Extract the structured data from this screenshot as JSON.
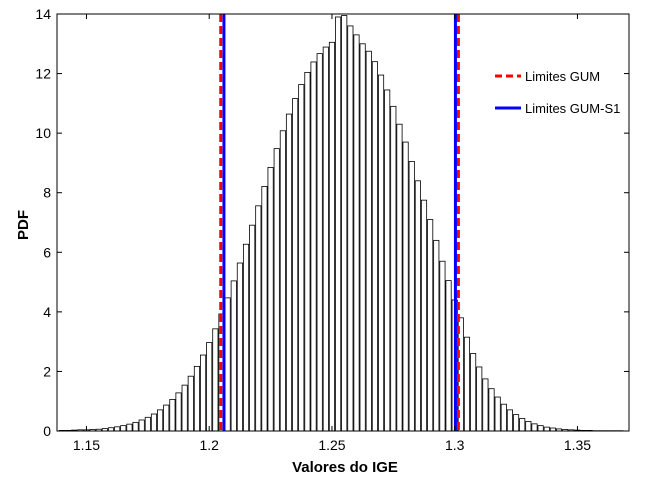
{
  "chart_data": {
    "type": "bar",
    "xlabel": "Valores do IGE",
    "ylabel": "PDF",
    "xlim": [
      1.138,
      1.371
    ],
    "ylim": [
      0,
      14
    ],
    "xticks": [
      1.15,
      1.2,
      1.25,
      1.3,
      1.35
    ],
    "xtick_labels": [
      "1.15",
      "1.2",
      "1.25",
      "1.3",
      "1.35"
    ],
    "yticks": [
      0,
      2,
      4,
      6,
      8,
      10,
      12,
      14
    ],
    "ytick_labels": [
      "0",
      "2",
      "4",
      "6",
      "8",
      "10",
      "12",
      "14"
    ],
    "grid": false,
    "legend_position": "top-right",
    "histogram": {
      "x": [
        1.14,
        1.1425,
        1.145,
        1.1475,
        1.15,
        1.1525,
        1.155,
        1.1575,
        1.16,
        1.1625,
        1.165,
        1.1675,
        1.17,
        1.1725,
        1.175,
        1.1775,
        1.18,
        1.1825,
        1.185,
        1.1875,
        1.19,
        1.1925,
        1.195,
        1.1975,
        1.2,
        1.2025,
        1.205,
        1.2075,
        1.21,
        1.2125,
        1.215,
        1.2175,
        1.22,
        1.2225,
        1.225,
        1.2275,
        1.23,
        1.2325,
        1.235,
        1.2375,
        1.24,
        1.2425,
        1.245,
        1.2475,
        1.25,
        1.2525,
        1.255,
        1.2575,
        1.26,
        1.2625,
        1.265,
        1.2675,
        1.27,
        1.2725,
        1.275,
        1.2775,
        1.28,
        1.2825,
        1.285,
        1.2875,
        1.29,
        1.2925,
        1.295,
        1.2975,
        1.3,
        1.3025,
        1.305,
        1.3075,
        1.31,
        1.3125,
        1.315,
        1.3175,
        1.32,
        1.3225,
        1.325,
        1.3275,
        1.33,
        1.3325,
        1.335,
        1.3375,
        1.34,
        1.3425,
        1.345,
        1.3475,
        1.35,
        1.3525,
        1.355,
        1.3575,
        1.36,
        1.3625,
        1.365,
        1.3675
      ],
      "values": [
        0.02,
        0.02,
        0.03,
        0.04,
        0.04,
        0.05,
        0.06,
        0.08,
        0.11,
        0.14,
        0.18,
        0.23,
        0.29,
        0.37,
        0.46,
        0.57,
        0.71,
        0.87,
        1.06,
        1.28,
        1.54,
        1.84,
        2.17,
        2.55,
        2.97,
        3.43,
        3.93,
        4.47,
        5.04,
        5.64,
        6.27,
        6.91,
        7.56,
        8.21,
        8.85,
        9.48,
        10.08,
        10.64,
        11.16,
        11.63,
        12.04,
        12.39,
        12.67,
        12.89,
        13.05,
        13.9,
        13.95,
        13.6,
        13.3,
        13.0,
        12.75,
        12.4,
        11.95,
        11.45,
        10.9,
        10.3,
        9.7,
        9.05,
        8.4,
        7.75,
        7.1,
        6.4,
        5.7,
        5.05,
        4.4,
        3.8,
        3.15,
        2.6,
        2.15,
        1.75,
        1.42,
        1.14,
        0.9,
        0.71,
        0.55,
        0.42,
        0.32,
        0.24,
        0.18,
        0.13,
        0.1,
        0.07,
        0.05,
        0.04,
        0.03,
        0.02,
        0.02,
        0.01,
        0.01,
        0.01,
        0.01,
        0.01
      ]
    },
    "series": [
      {
        "name": "Limites GUM",
        "color": "#ff0000",
        "dash": "dashed",
        "x_values": [
          1.2047,
          1.3015
        ]
      },
      {
        "name": "Limites GUM-S1",
        "color": "#0000ff",
        "dash": "solid",
        "x_values": [
          1.206,
          1.3003
        ]
      }
    ]
  }
}
